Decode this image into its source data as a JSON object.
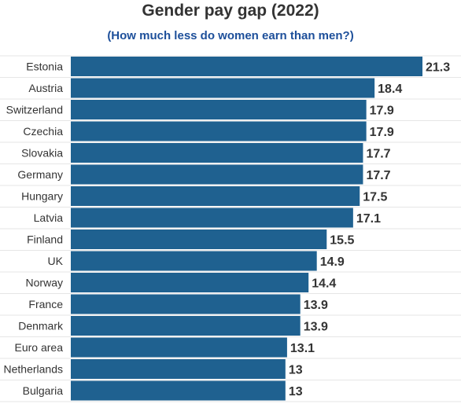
{
  "chart_data": {
    "type": "bar",
    "orientation": "horizontal",
    "title": "Gender pay gap (2022)",
    "subtitle": "(How much less do women earn than men?)",
    "categories": [
      "Estonia",
      "Austria",
      "Switzerland",
      "Czechia",
      "Slovakia",
      "Germany",
      "Hungary",
      "Latvia",
      "Finland",
      "UK",
      "Norway",
      "France",
      "Denmark",
      "Euro area",
      "Netherlands",
      "Bulgaria"
    ],
    "values": [
      21.3,
      18.4,
      17.9,
      17.9,
      17.7,
      17.7,
      17.5,
      17.1,
      15.5,
      14.9,
      14.4,
      13.9,
      13.9,
      13.1,
      13,
      13
    ],
    "value_labels": [
      "21.3",
      "18.4",
      "17.9",
      "17.9",
      "17.7",
      "17.7",
      "17.5",
      "17.1",
      "15.5",
      "14.9",
      "14.4",
      "13.9",
      "13.9",
      "13.1",
      "13",
      "13"
    ],
    "xlim": [
      0,
      21.3
    ],
    "bar_color": "#1f6190",
    "grid": true,
    "legend": "none"
  }
}
